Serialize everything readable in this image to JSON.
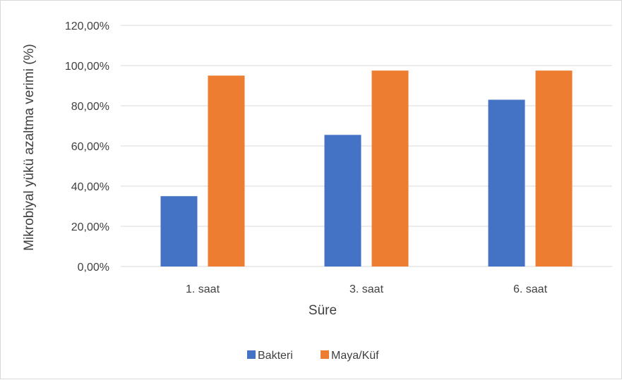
{
  "chart_data": {
    "type": "bar",
    "categories": [
      "1. saat",
      "3. saat",
      "6. saat"
    ],
    "series": [
      {
        "name": "Bakteri",
        "values": [
          35.0,
          65.5,
          83.0
        ],
        "color": "#4472c4"
      },
      {
        "name": "Maya/Küf",
        "values": [
          95.0,
          97.5,
          97.5
        ],
        "color": "#ed7d31"
      }
    ],
    "y_ticks": [
      0,
      20,
      40,
      60,
      80,
      100,
      120
    ],
    "y_tick_labels": [
      "0,00%",
      "20,00%",
      "40,00%",
      "60,00%",
      "80,00%",
      "100,00%",
      "120,00%"
    ],
    "ylim": [
      0,
      120
    ],
    "ylabel": "Mikrobiyal yükü azaltma verimi (%)",
    "xlabel": "Süre",
    "grid": true,
    "legend_position": "bottom",
    "gridline_color": "#d9d9d9"
  }
}
